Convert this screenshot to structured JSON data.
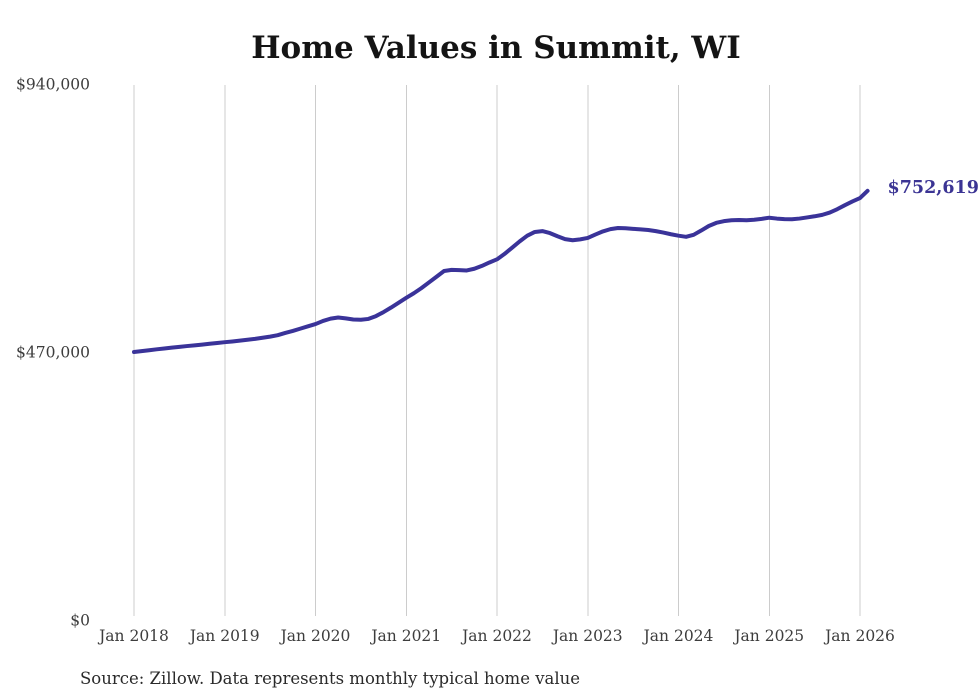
{
  "title": "Home Values in Summit, WI",
  "end_label": "$752,619",
  "source": "Source: Zillow. Data represents monthly typical home value",
  "colors": {
    "line": "#3a3399",
    "end_label": "#3b3494",
    "gridline": "#cccccc",
    "axis_text": "#3d3d3d",
    "title_text": "#141414",
    "source_text": "#2a2a2a",
    "background": "#ffffff"
  },
  "chart_data": {
    "type": "line",
    "title": "Home Values in Summit, WI",
    "x_start": "Jan 2018",
    "x_end": "Feb 2026",
    "x_interval": "monthly",
    "x_tick_labels": [
      "Jan 2018",
      "Jan 2019",
      "Jan 2020",
      "Jan 2021",
      "Jan 2022",
      "Jan 2023",
      "Jan 2024",
      "Jan 2025",
      "Jan 2026"
    ],
    "y_ticks": [
      {
        "label": "$940,000",
        "value": 940000
      },
      {
        "label": "$470,000",
        "value": 470000
      },
      {
        "label": "$0",
        "value": 0
      }
    ],
    "ylim": [
      0,
      940000
    ],
    "grid": "vertical",
    "legend": "none",
    "final_value": 752619,
    "series": [
      {
        "name": "Typical home value",
        "values": [
          470000,
          471500,
          473100,
          474700,
          476200,
          477600,
          479000,
          480400,
          481700,
          483000,
          484400,
          485800,
          487200,
          488500,
          490000,
          491500,
          493000,
          495000,
          497000,
          499500,
          503500,
          507000,
          511000,
          515000,
          519000,
          524500,
          528500,
          530500,
          529000,
          527000,
          526500,
          528000,
          533000,
          540000,
          548000,
          556500,
          565000,
          573000,
          582000,
          592000,
          602000,
          612000,
          614000,
          613500,
          613000,
          616000,
          621000,
          627000,
          632500,
          642000,
          653000,
          664000,
          674000,
          680500,
          682000,
          678500,
          673000,
          668000,
          666000,
          667500,
          670000,
          676000,
          681500,
          685500,
          687500,
          687000,
          686000,
          685000,
          684000,
          682000,
          679500,
          676500,
          674000,
          672000,
          675500,
          683000,
          691000,
          696500,
          699500,
          701000,
          701500,
          701000,
          702000,
          703500,
          705500,
          704000,
          703000,
          702800,
          704000,
          706000,
          708000,
          710500,
          714500,
          720500,
          727500,
          734000,
          740000,
          752619
        ]
      }
    ]
  }
}
